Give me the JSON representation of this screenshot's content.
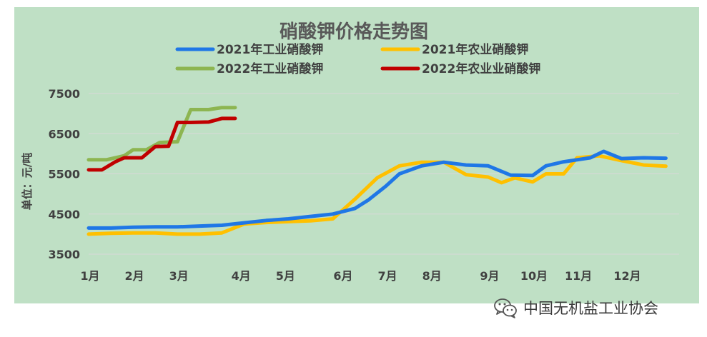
{
  "chart_data": {
    "type": "line",
    "title": "硝酸钾价格走势图",
    "xlabel": "",
    "ylabel": "单位：元/吨",
    "ylim": [
      3500,
      7500
    ],
    "yticks": [
      3500,
      4500,
      5500,
      6500,
      7500
    ],
    "ytick_labels": [
      "3500",
      "4500",
      "5500",
      "6500",
      "7500"
    ],
    "xlim": [
      0,
      13.3
    ],
    "xticks": [
      {
        "x": 0,
        "label": "1月"
      },
      {
        "x": 1,
        "label": "2月"
      },
      {
        "x": 2,
        "label": "3月"
      },
      {
        "x": 3.4,
        "label": "4月"
      },
      {
        "x": 4.4,
        "label": "5月"
      },
      {
        "x": 5.7,
        "label": "6月"
      },
      {
        "x": 6.7,
        "label": "7月"
      },
      {
        "x": 7.7,
        "label": "8月"
      },
      {
        "x": 9,
        "label": "9月"
      },
      {
        "x": 10,
        "label": "10月"
      },
      {
        "x": 11,
        "label": "11月"
      },
      {
        "x": 12.1,
        "label": "12月"
      }
    ],
    "grid": true,
    "legend_position": "top",
    "series": [
      {
        "name": "2021年工业硝酸钾",
        "color": "#1f77e6",
        "x": [
          0,
          0.5,
          1,
          1.5,
          2,
          2.5,
          3,
          3.5,
          4,
          4.5,
          5,
          5.5,
          6,
          6.3,
          6.7,
          7,
          7.5,
          8,
          8.5,
          9,
          9.5,
          10,
          10.3,
          10.7,
          11,
          11.3,
          11.6,
          12,
          12.5,
          13
        ],
        "y": [
          4150,
          4150,
          4170,
          4180,
          4180,
          4200,
          4220,
          4280,
          4340,
          4380,
          4440,
          4500,
          4640,
          4850,
          5200,
          5500,
          5700,
          5790,
          5720,
          5700,
          5470,
          5460,
          5700,
          5800,
          5850,
          5900,
          6060,
          5880,
          5900,
          5890
        ]
      },
      {
        "name": "2021年农业硝酸钾",
        "color": "#ffc000",
        "x": [
          0,
          0.5,
          1,
          1.5,
          2,
          2.5,
          3,
          3.5,
          4,
          4.5,
          5,
          5.5,
          6,
          6.5,
          7,
          7.5,
          8,
          8.5,
          9,
          9.3,
          9.6,
          10,
          10.3,
          10.7,
          11,
          11.5,
          12,
          12.5,
          13
        ],
        "y": [
          4000,
          4020,
          4030,
          4030,
          4000,
          4000,
          4030,
          4250,
          4290,
          4310,
          4330,
          4380,
          4870,
          5400,
          5700,
          5790,
          5790,
          5480,
          5420,
          5280,
          5400,
          5300,
          5500,
          5500,
          5900,
          5950,
          5830,
          5720,
          5690
        ]
      },
      {
        "name": "2022年工业硝酸钾",
        "color": "#8db551",
        "x": [
          0,
          0.4,
          0.8,
          1.0,
          1.3,
          1.6,
          2.0,
          2.3,
          2.7,
          3.0,
          3.3
        ],
        "y": [
          5850,
          5850,
          5950,
          6100,
          6100,
          6280,
          6300,
          7100,
          7100,
          7150,
          7150
        ]
      },
      {
        "name": "2022年农业业硝酸钾",
        "color": "#c00000",
        "x": [
          0,
          0.3,
          0.6,
          0.8,
          1.2,
          1.5,
          1.8,
          2.0,
          2.3,
          2.7,
          3.0,
          3.3
        ],
        "y": [
          5600,
          5600,
          5800,
          5900,
          5900,
          6180,
          6190,
          6780,
          6780,
          6790,
          6880,
          6880
        ]
      }
    ]
  },
  "watermark": {
    "text": "中国无机盐工业协会",
    "icon": "wechat-icon"
  }
}
